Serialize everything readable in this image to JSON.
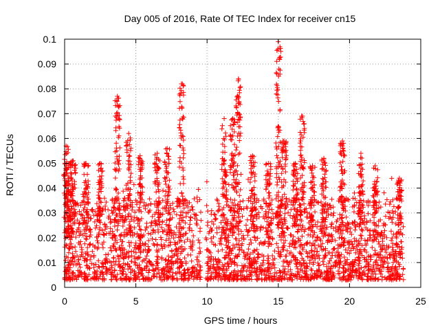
{
  "chart_data": {
    "type": "scatter",
    "title": "Day 005 of 2016, Rate Of TEC Index for receiver cn15",
    "xlabel": "GPS time / hours",
    "ylabel": "ROTI / TECUs",
    "xlim": [
      0,
      25
    ],
    "ylim": [
      0,
      0.1
    ],
    "xticks": [
      "0",
      "5",
      "10",
      "15",
      "20",
      "25"
    ],
    "yticks": [
      "0",
      "0.01",
      "0.02",
      "0.03",
      "0.04",
      "0.05",
      "0.06",
      "0.07",
      "0.08",
      "0.09",
      "0.1"
    ],
    "grid": true,
    "marker": "+",
    "color": "#ff0000",
    "gap_hours": [
      9.6,
      9.9
    ],
    "x_end": 23.8,
    "base_min": 0.003,
    "base_max": 0.036,
    "bursts": [
      {
        "x": 0.1,
        "peak": 0.057
      },
      {
        "x": 0.3,
        "peak": 0.05
      },
      {
        "x": 0.6,
        "peak": 0.051
      },
      {
        "x": 1.5,
        "peak": 0.05
      },
      {
        "x": 2.5,
        "peak": 0.05
      },
      {
        "x": 3.7,
        "peak": 0.077
      },
      {
        "x": 4.5,
        "peak": 0.062
      },
      {
        "x": 5.3,
        "peak": 0.053
      },
      {
        "x": 6.5,
        "peak": 0.054
      },
      {
        "x": 7.2,
        "peak": 0.056
      },
      {
        "x": 8.2,
        "peak": 0.082
      },
      {
        "x": 11.2,
        "peak": 0.068
      },
      {
        "x": 11.8,
        "peak": 0.068
      },
      {
        "x": 12.2,
        "peak": 0.084
      },
      {
        "x": 13.2,
        "peak": 0.053
      },
      {
        "x": 14.3,
        "peak": 0.05
      },
      {
        "x": 15.0,
        "peak": 0.099
      },
      {
        "x": 15.4,
        "peak": 0.059
      },
      {
        "x": 16.2,
        "peak": 0.05
      },
      {
        "x": 16.7,
        "peak": 0.069
      },
      {
        "x": 17.4,
        "peak": 0.049
      },
      {
        "x": 18.2,
        "peak": 0.052
      },
      {
        "x": 19.5,
        "peak": 0.059
      },
      {
        "x": 20.8,
        "peak": 0.054
      },
      {
        "x": 21.8,
        "peak": 0.049
      },
      {
        "x": 23.5,
        "peak": 0.044
      }
    ]
  }
}
